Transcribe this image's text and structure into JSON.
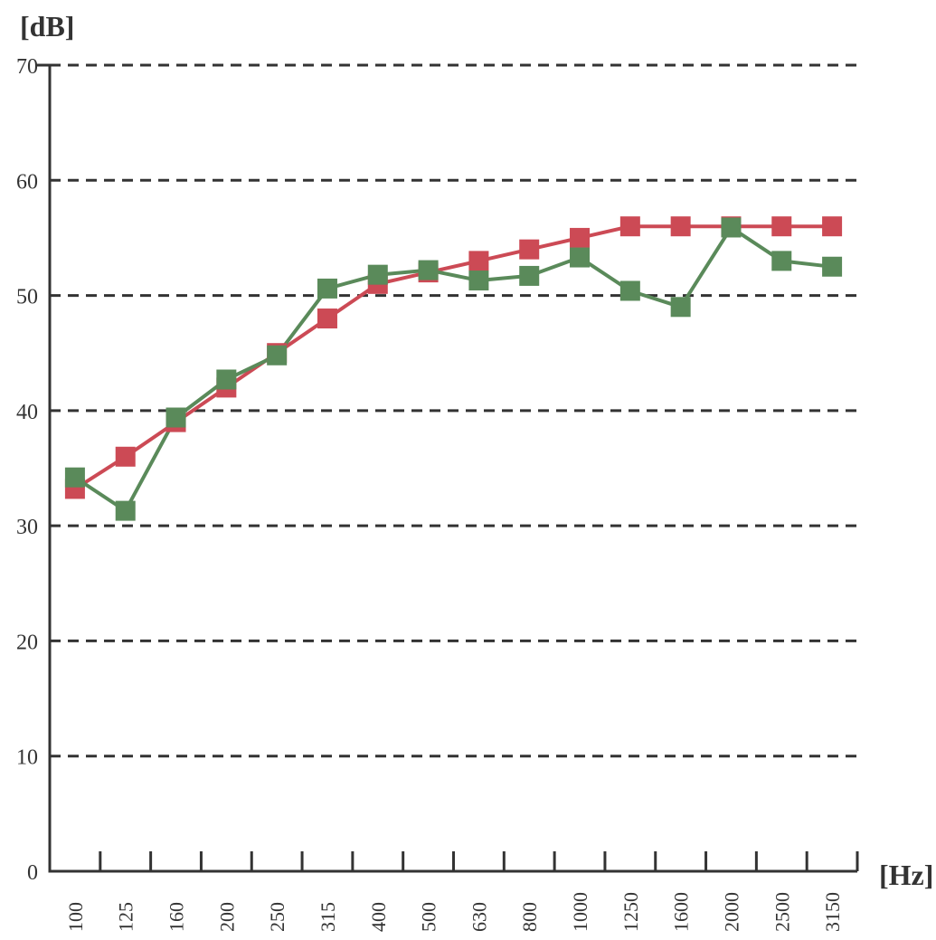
{
  "chart_data": {
    "type": "line",
    "ylabel": "[dB]",
    "xlabel": "[Hz]",
    "ylim": [
      0,
      70
    ],
    "yticks": [
      "0",
      "10",
      "20",
      "30",
      "40",
      "50",
      "60",
      "70"
    ],
    "categories": [
      "100",
      "125",
      "160",
      "200",
      "250",
      "315",
      "400",
      "500",
      "630",
      "800",
      "1000",
      "1250",
      "1600",
      "2000",
      "2500",
      "3150"
    ],
    "grid": "horizontal dashed",
    "series": [
      {
        "color": "#cc4a55",
        "values": [
          33.2,
          36.0,
          39.0,
          42.0,
          45.0,
          48.0,
          51.0,
          52.0,
          53.0,
          54.0,
          55.0,
          56.0,
          56.0,
          56.0,
          56.0,
          56.0
        ]
      },
      {
        "color": "#5a8a5a",
        "values": [
          34.2,
          31.3,
          39.4,
          42.7,
          44.8,
          50.6,
          51.8,
          52.2,
          51.3,
          51.7,
          53.3,
          50.4,
          49.0,
          55.9,
          53.0,
          52.5
        ]
      }
    ]
  }
}
